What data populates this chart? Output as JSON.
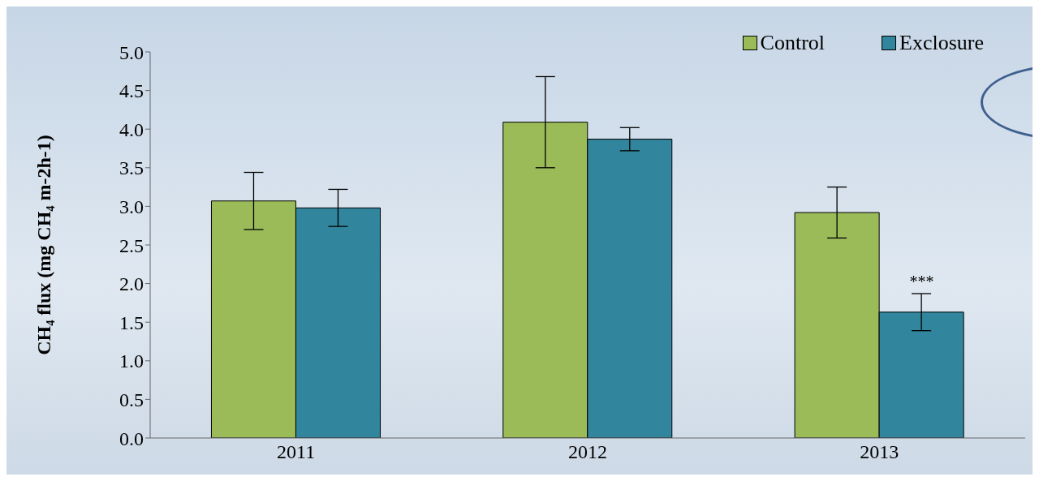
{
  "chart_data": {
    "type": "bar",
    "ylabel": "CH₄ flux (mg CH₄ m-2h-1)",
    "categories": [
      "2011",
      "2012",
      "2013"
    ],
    "series": [
      {
        "name": "Control",
        "color": "#9bbb59",
        "values": [
          3.07,
          4.09,
          2.92
        ],
        "errors": [
          0.37,
          0.59,
          0.33
        ]
      },
      {
        "name": "Exclosure",
        "color": "#31859c",
        "values": [
          2.98,
          3.87,
          1.63
        ],
        "errors": [
          0.24,
          0.15,
          0.24
        ]
      }
    ],
    "ylim": [
      0,
      5
    ],
    "yticks": [
      {
        "value": 0,
        "label": "0.0"
      },
      {
        "value": 0.5,
        "label": "0.5"
      },
      {
        "value": 1,
        "label": "1.0"
      },
      {
        "value": 1.5,
        "label": "1.5"
      },
      {
        "value": 2,
        "label": "2.0"
      },
      {
        "value": 2.5,
        "label": "2.5"
      },
      {
        "value": 3,
        "label": "3.0"
      },
      {
        "value": 3.5,
        "label": "3.5"
      },
      {
        "value": 4,
        "label": "4.0"
      },
      {
        "value": 4.5,
        "label": "4.5"
      },
      {
        "value": 5,
        "label": "5.0"
      }
    ],
    "annotations": [
      {
        "text": "***",
        "x": "2013",
        "y": 1.95
      }
    ],
    "legend": "top right"
  }
}
